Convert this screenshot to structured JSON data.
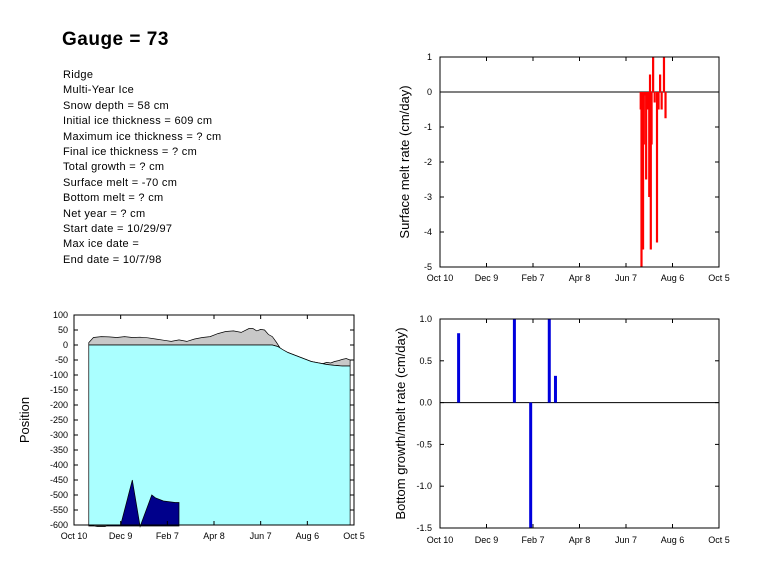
{
  "title": "Gauge = 73",
  "info_lines": [
    "Ridge",
    "Multi-Year Ice",
    "Snow depth = 58 cm",
    "Initial ice thickness = 609 cm",
    "Maximum ice thickness = ? cm",
    "Final ice thickness = ? cm",
    "Total growth = ? cm",
    "Surface melt = -70 cm",
    "Bottom melt = ? cm",
    "Net year = ? cm",
    "Start date = 10/29/97",
    "Max ice date =",
    "End date = 10/7/98"
  ],
  "colors": {
    "surface_melt_bars": "#ff0000",
    "bottom_bars": "#0000dd",
    "snow": "#c8c8c8",
    "ice": "#aaffff",
    "bottom_melt_region": "#00008b",
    "axis": "#000000"
  },
  "chart_data": [
    {
      "id": "surface",
      "type": "bar",
      "ylabel": "Surface melt rate (cm/day)",
      "xlabel": "",
      "x_ticks": [
        "Oct 10",
        "Dec 9",
        "Feb 7",
        "Apr 8",
        "Jun 7",
        "Aug 6",
        "Oct 5"
      ],
      "xlim": [
        0,
        360
      ],
      "ylim": [
        -5,
        1
      ],
      "y_ticks": [
        "1",
        "0",
        "-1",
        "-2",
        "-3",
        "-4",
        "-5"
      ],
      "x": [
        259,
        260,
        261,
        262,
        263,
        264,
        266,
        267,
        268,
        270,
        271,
        272,
        273,
        275,
        277,
        280,
        282,
        284,
        286,
        289,
        291
      ],
      "values": [
        -0.5,
        -5,
        -0.3,
        -4.5,
        -1.5,
        -0.1,
        -2.5,
        -0.2,
        -0.5,
        -3.0,
        0.5,
        -4.5,
        -1.5,
        1.0,
        -0.3,
        -4.3,
        -0.5,
        0.5,
        -0.5,
        1.0,
        -0.75
      ]
    },
    {
      "id": "bottom",
      "type": "bar",
      "ylabel": "Bottom growth/melt rate (cm/day)",
      "xlabel": "",
      "x_ticks": [
        "Oct 10",
        "Dec 9",
        "Feb 7",
        "Apr 8",
        "Jun 7",
        "Aug 6",
        "Oct 5"
      ],
      "xlim": [
        0,
        360
      ],
      "ylim": [
        -1.5,
        1.0
      ],
      "y_ticks": [
        "1.0",
        "0.5",
        "0.0",
        "-0.5",
        "-1.0",
        "-1.5"
      ],
      "x": [
        24,
        96,
        117,
        141,
        149
      ],
      "values": [
        0.83,
        1.0,
        -1.5,
        1.0,
        0.32
      ]
    },
    {
      "id": "position",
      "type": "area",
      "ylabel": "Position",
      "xlabel": "",
      "x_ticks": [
        "Oct 10",
        "Dec 9",
        "Feb 7",
        "Apr 8",
        "Jun 7",
        "Aug 6",
        "Oct 5"
      ],
      "xlim": [
        0,
        360
      ],
      "ylim": [
        -600,
        100
      ],
      "y_ticks": [
        "100",
        "50",
        "0",
        "-50",
        "-100",
        "-150",
        "-200",
        "-250",
        "-300",
        "-350",
        "-400",
        "-450",
        "-500",
        "-550",
        "-600"
      ],
      "series": [
        {
          "id": "snow_surface",
          "x": [
            19,
            25,
            35,
            45,
            55,
            65,
            75,
            85,
            95,
            105,
            115,
            125,
            135,
            145,
            155,
            165,
            175,
            185,
            195,
            205,
            215,
            225,
            230,
            235,
            240,
            245,
            250,
            255,
            260,
            265,
            270,
            275,
            280,
            285,
            290,
            295,
            300,
            305,
            310,
            315,
            320,
            325,
            330,
            335,
            340,
            345,
            350,
            355
          ],
          "values": [
            8,
            25,
            28,
            27,
            25,
            28,
            25,
            26,
            24,
            20,
            16,
            12,
            17,
            12,
            20,
            25,
            28,
            38,
            45,
            47,
            42,
            55,
            55,
            47,
            52,
            50,
            35,
            28,
            10,
            -10,
            -20,
            -25,
            -35,
            -40,
            -50,
            -45,
            -60,
            -55,
            -65,
            -60,
            -62,
            -58,
            -60,
            -55,
            -52,
            -48,
            -45,
            -50
          ]
        },
        {
          "id": "ice_surface",
          "x": [
            19,
            255,
            262,
            268,
            275,
            285,
            295,
            305,
            315,
            325,
            335,
            345,
            355
          ],
          "values": [
            0,
            0,
            -5,
            -15,
            -25,
            -35,
            -45,
            -55,
            -60,
            -65,
            -68,
            -70,
            -70
          ]
        },
        {
          "id": "bottom_melt",
          "x": [
            19,
            30,
            40,
            45,
            60,
            75,
            85,
            100,
            105,
            115,
            130,
            135
          ],
          "values": [
            -600,
            -605,
            -605,
            -600,
            -600,
            -450,
            -605,
            -500,
            -510,
            -520,
            -525,
            -525
          ]
        }
      ]
    }
  ]
}
